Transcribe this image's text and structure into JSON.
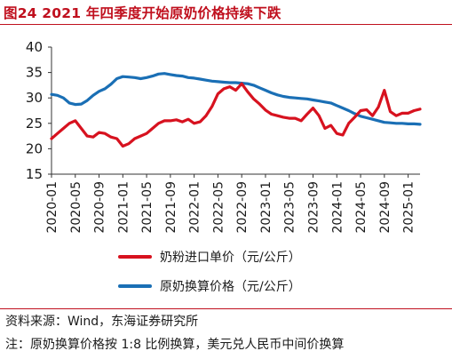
{
  "title": "图24  2021 年四季度开始原奶价格持续下跌",
  "source": "资料来源：Wind，东海证券研究所",
  "note": "注：原奶换算价格按 1:8 比例换算，美元兑人民币中间价换算",
  "chart_data": {
    "type": "line",
    "ylim": [
      15,
      40
    ],
    "yticks": [
      15,
      20,
      25,
      30,
      35,
      40
    ],
    "x_tick_labels": [
      "2020-01",
      "2020-05",
      "2020-09",
      "2021-01",
      "2021-05",
      "2021-09",
      "2022-01",
      "2022-05",
      "2022-09",
      "2023-01",
      "2023-05",
      "2023-09",
      "2024-01",
      "2024-05",
      "2024-09",
      "2025-01"
    ],
    "x_tick_step_months": 4,
    "x_start": "2020-01",
    "x_end": "2025-03",
    "grid": false,
    "legend_position": "bottom",
    "series": [
      {
        "name": "奶粉进口单价（元/公斤）",
        "color": "#d7121f",
        "values": [
          22.0,
          23.0,
          24.0,
          25.0,
          25.5,
          24.0,
          22.5,
          22.3,
          23.2,
          23.0,
          22.3,
          22.0,
          20.5,
          21.0,
          22.0,
          22.5,
          23.0,
          24.0,
          25.0,
          25.5,
          25.5,
          25.7,
          25.3,
          25.8,
          25.0,
          25.3,
          26.5,
          28.3,
          30.8,
          31.8,
          32.2,
          31.5,
          32.8,
          31.2,
          29.8,
          28.8,
          27.6,
          26.8,
          26.5,
          26.2,
          26.0,
          26.0,
          25.5,
          26.8,
          28.0,
          26.5,
          24.0,
          24.6,
          23.0,
          22.7,
          25.0,
          26.2,
          27.5,
          27.7,
          26.5,
          28.2,
          31.5,
          27.3,
          26.5,
          27.0,
          27.0,
          27.5,
          27.8
        ]
      },
      {
        "name": "原奶换算价格（元/公斤）",
        "color": "#1a6fb5",
        "values": [
          30.7,
          30.5,
          30.0,
          29.0,
          28.7,
          28.8,
          29.5,
          30.5,
          31.3,
          31.8,
          32.7,
          33.8,
          34.2,
          34.1,
          34.0,
          33.8,
          34.0,
          34.3,
          34.7,
          34.8,
          34.6,
          34.4,
          34.3,
          34.0,
          33.9,
          33.7,
          33.5,
          33.3,
          33.2,
          33.1,
          33.0,
          33.0,
          32.9,
          32.8,
          32.5,
          32.0,
          31.5,
          31.0,
          30.6,
          30.3,
          30.1,
          30.0,
          29.9,
          29.8,
          29.6,
          29.4,
          29.2,
          29.0,
          28.5,
          28.0,
          27.5,
          26.9,
          26.4,
          26.1,
          25.8,
          25.5,
          25.2,
          25.1,
          25.0,
          25.0,
          24.9,
          24.9,
          24.8
        ]
      }
    ]
  }
}
